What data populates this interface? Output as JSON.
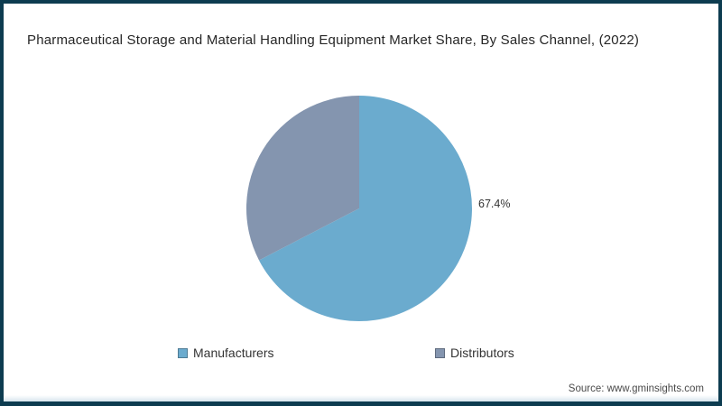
{
  "window": {
    "border_color": "#0d3c50",
    "background": "#ffffff"
  },
  "chart_data": {
    "type": "pie",
    "title": "Pharmaceutical Storage and Material Handling Equipment Market Share, By Sales Channel, (2022)",
    "slices": [
      {
        "label": "Manufacturers",
        "value": 67.4,
        "color": "#6babce",
        "data_label": "67.4%"
      },
      {
        "label": "Distributors",
        "value": 32.6,
        "color": "#8495af",
        "data_label": ""
      }
    ],
    "start_angle_deg": 0,
    "direction": "clockwise",
    "legend_position": "bottom",
    "data_labels_shown": [
      "67.4%"
    ]
  },
  "source_note": "Source: www.gminsights.com"
}
